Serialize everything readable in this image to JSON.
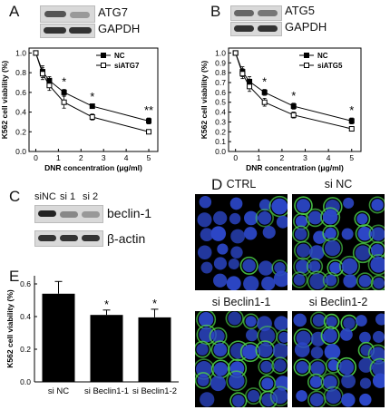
{
  "panels": {
    "a": {
      "letter": "A",
      "blot1": "ATG7",
      "blot2": "GAPDH"
    },
    "b": {
      "letter": "B",
      "blot1": "ATG5",
      "blot2": "GAPDH"
    },
    "c": {
      "letter": "C",
      "lanes": [
        "siNC",
        "si 1",
        "si 2"
      ],
      "blot1": "beclin-1",
      "blot2": "β-actin"
    },
    "d": {
      "letter": "D",
      "images": [
        "CTRL",
        "si NC",
        "si Beclin1-1",
        "si Beclin1-2"
      ]
    },
    "e": {
      "letter": "E"
    }
  },
  "colors": {
    "series_line": "#000000",
    "bar_fill": "#000000",
    "microscopy_nuclei": "#2c47c8",
    "microscopy_stain": "#4fd24a"
  },
  "chart_data": [
    {
      "type": "line",
      "panel": "A",
      "xlabel": "DNR concentration (μg/ml)",
      "ylabel": "K562 cell viability (%)",
      "xlim": [
        -0.3,
        5.4
      ],
      "ylim": [
        0.0,
        1.05
      ],
      "xticks": [
        "0",
        "1",
        "2",
        "3",
        "4",
        "5"
      ],
      "yticks": [
        "0.0",
        "0.2",
        "0.4",
        "0.6",
        "0.8",
        "1.0"
      ],
      "legend_position": "top-right",
      "x": [
        0,
        0.3,
        0.6,
        1.25,
        2.5,
        5
      ],
      "series": [
        {
          "name": "NC",
          "marker": "filled-square",
          "values": [
            1.0,
            0.81,
            0.72,
            0.6,
            0.46,
            0.31
          ],
          "errors": [
            0.0,
            0.06,
            0.04,
            0.03,
            0.02,
            0.03
          ]
        },
        {
          "name": "siATG7",
          "marker": "open-square",
          "values": [
            1.0,
            0.79,
            0.67,
            0.5,
            0.35,
            0.2
          ],
          "errors": [
            0.0,
            0.06,
            0.05,
            0.06,
            0.03,
            0.015
          ]
        }
      ],
      "annotations": [
        {
          "x": 1.25,
          "text": "*"
        },
        {
          "x": 2.5,
          "text": "*"
        },
        {
          "x": 5,
          "text": "**"
        }
      ]
    },
    {
      "type": "line",
      "panel": "B",
      "xlabel": "DNR concentration (μg/ml)",
      "ylabel": "K562 cell viability (%)",
      "xlim": [
        -0.3,
        5.4
      ],
      "ylim": [
        0.0,
        1.05
      ],
      "xticks": [
        "0",
        "1",
        "2",
        "3",
        "4",
        "5"
      ],
      "yticks": [
        "0.0",
        "0.1",
        "0.2",
        "0.3",
        "0.4",
        "0.5",
        "0.6",
        "0.7",
        "0.8",
        "0.9",
        "1.0"
      ],
      "legend_position": "top-right",
      "x": [
        0,
        0.3,
        0.6,
        1.25,
        2.5,
        5
      ],
      "series": [
        {
          "name": "NC",
          "marker": "filled-square",
          "values": [
            1.0,
            0.81,
            0.71,
            0.6,
            0.46,
            0.31
          ],
          "errors": [
            0.0,
            0.05,
            0.05,
            0.03,
            0.03,
            0.03
          ]
        },
        {
          "name": "siATG5",
          "marker": "open-square",
          "values": [
            1.0,
            0.79,
            0.66,
            0.5,
            0.37,
            0.23
          ],
          "errors": [
            0.0,
            0.05,
            0.05,
            0.04,
            0.03,
            0.02
          ]
        }
      ],
      "annotations": [
        {
          "x": 1.25,
          "text": "*"
        },
        {
          "x": 2.5,
          "text": "*"
        },
        {
          "x": 5,
          "text": "*"
        }
      ]
    },
    {
      "type": "bar",
      "panel": "E",
      "ylabel": "K562 cell viability (%)",
      "ylim": [
        0.0,
        0.65
      ],
      "yticks": [
        "0.0",
        "0.2",
        "0.4",
        "0.6"
      ],
      "categories": [
        "si NC",
        "si Beclin1-1",
        "si Beclin1-2"
      ],
      "values": [
        0.54,
        0.41,
        0.395
      ],
      "errors": [
        0.075,
        0.03,
        0.05
      ],
      "annotations": [
        "",
        "*",
        "*"
      ]
    }
  ]
}
